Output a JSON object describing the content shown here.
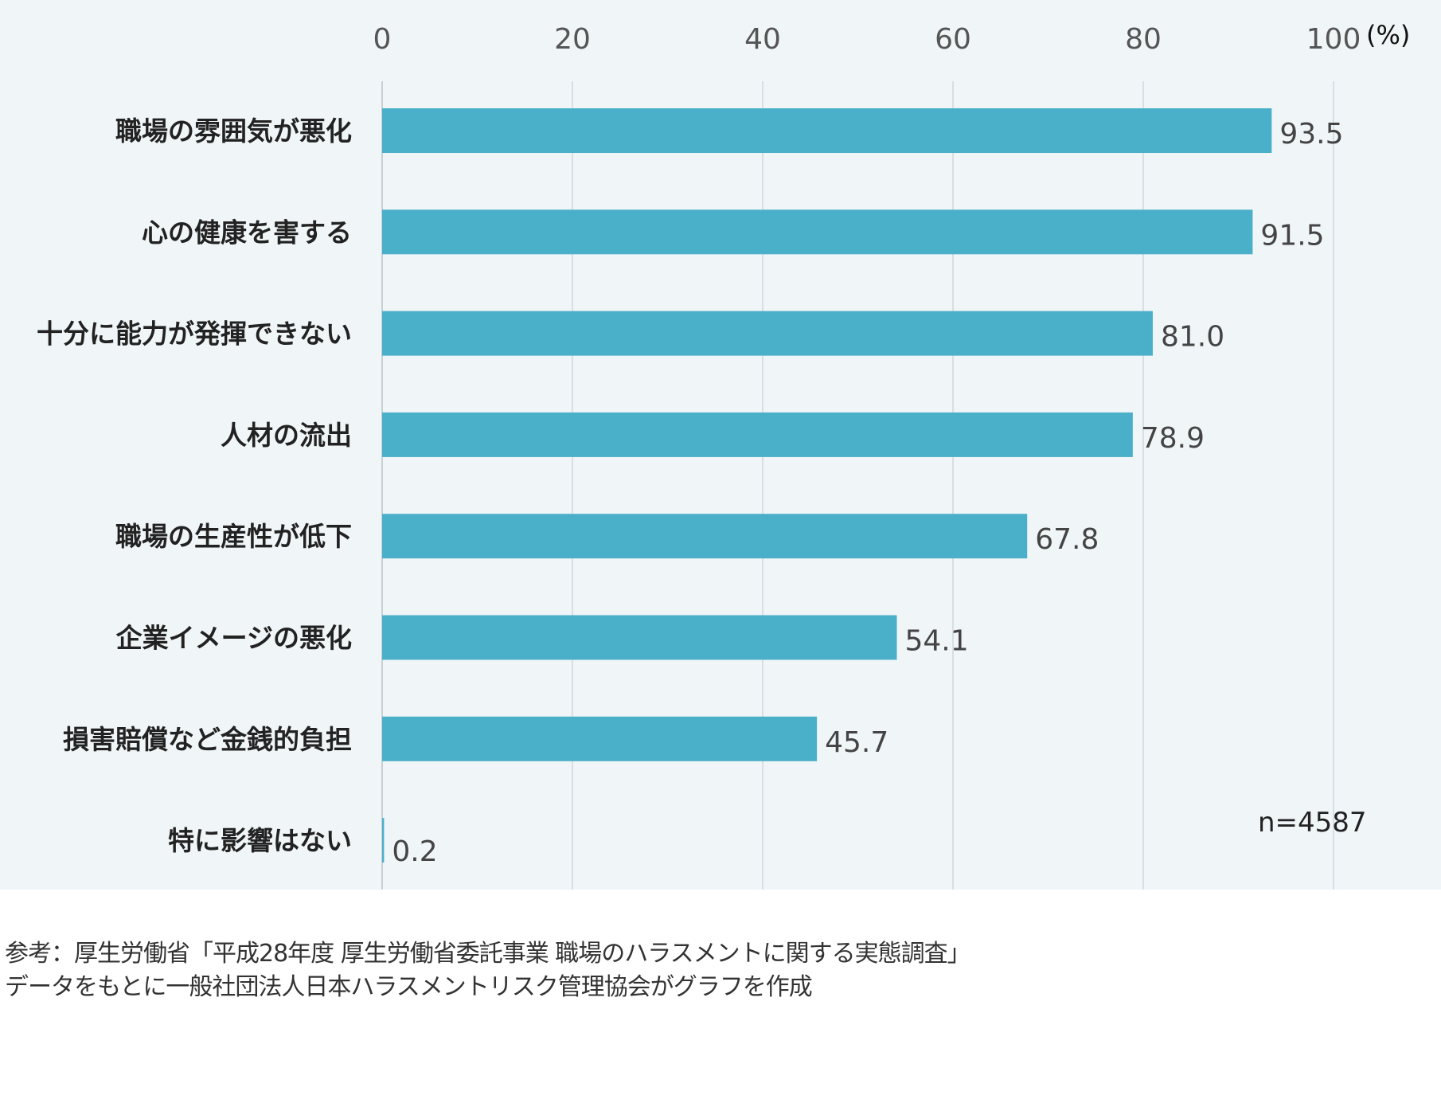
{
  "chart_data": {
    "type": "bar",
    "orientation": "horizontal",
    "categories": [
      "職場の雰囲気が悪化",
      "心の健康を害する",
      "十分に能力が発揮できない",
      "人材の流出",
      "職場の生産性が低下",
      "企業イメージの悪化",
      "損害賠償など金銭的負担",
      "特に影響はない"
    ],
    "values": [
      93.5,
      91.5,
      81.0,
      78.9,
      67.8,
      54.1,
      45.7,
      0.2
    ],
    "value_labels": [
      "93.5",
      "91.5",
      "81.0",
      "78.9",
      "67.8",
      "54.1",
      "45.7",
      "0.2"
    ],
    "xlim": [
      0,
      100
    ],
    "xticks": [
      "0",
      "20",
      "40",
      "60",
      "80",
      "100"
    ],
    "xunit": "(%)",
    "grid": true,
    "bar_color": "#4aafc8",
    "annotation": "n=4587"
  },
  "footer": {
    "line1": "参考：厚生労働省「平成28年度 厚生労働省委託事業 職場のハラスメントに関する実態調査」",
    "line2": "データをもとに一般社団法人日本ハラスメントリスク管理協会がグラフを作成"
  }
}
